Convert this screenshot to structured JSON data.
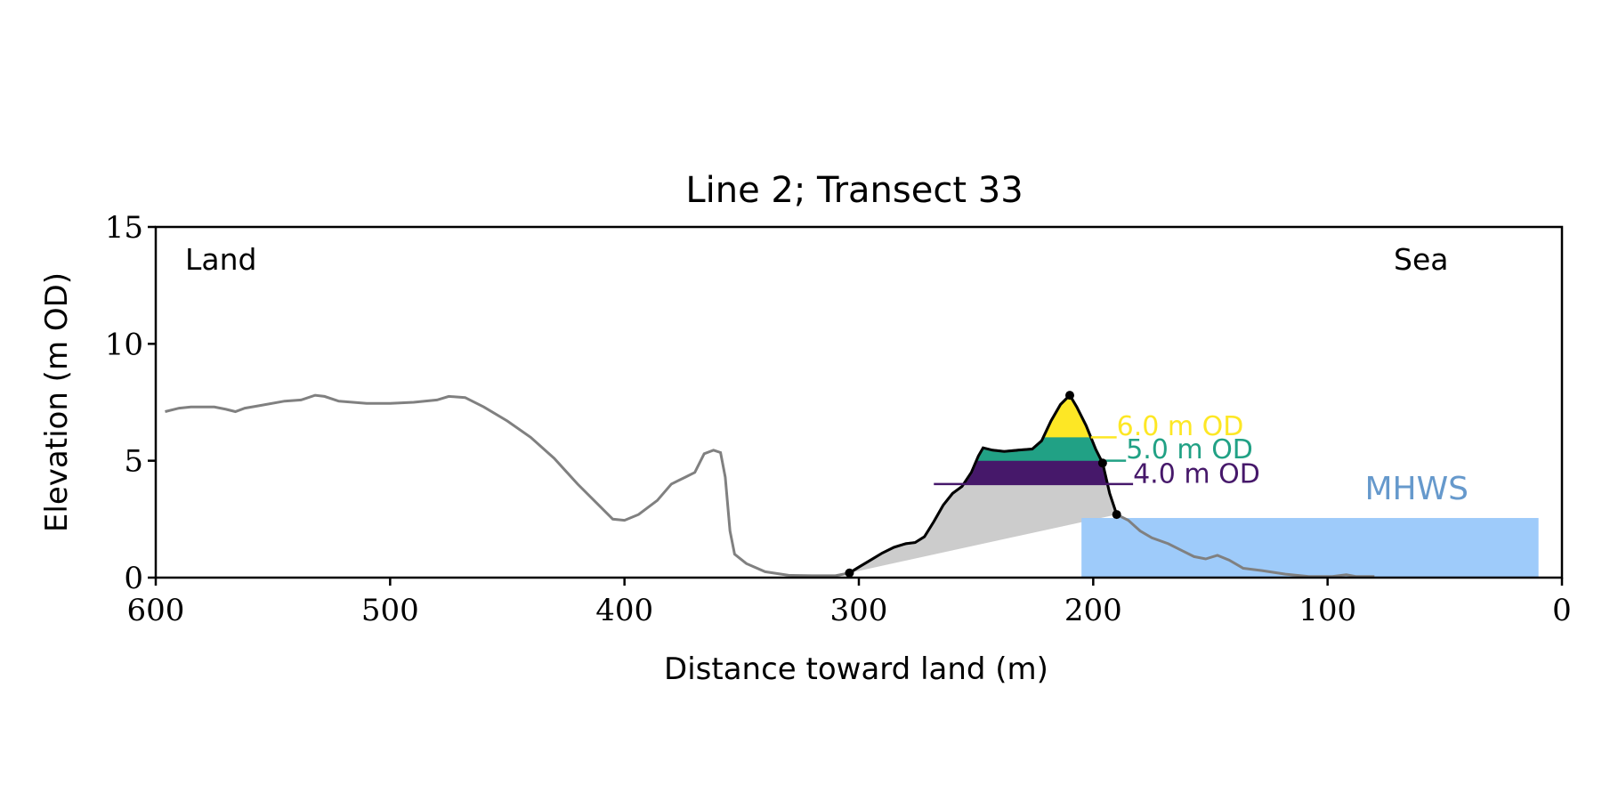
{
  "chart_data": {
    "type": "line",
    "title": "Line 2; Transect 33",
    "xlabel": "Distance toward land (m)",
    "ylabel": "Elevation (m OD)",
    "xlim": [
      600,
      0
    ],
    "ylim": [
      0,
      15
    ],
    "x_ticks": [
      600,
      500,
      400,
      300,
      200,
      100,
      0
    ],
    "y_ticks": [
      0,
      5,
      10,
      15
    ],
    "grid": false,
    "annotations": {
      "land": "Land",
      "sea": "Sea",
      "mhws": "MHWS"
    },
    "mhws": {
      "level": 2.55,
      "x_from": 205,
      "x_to": 10
    },
    "colors": {
      "profile": "#808080",
      "dune": "#000000",
      "fill_base": "#cccccc",
      "band_4": "#46186a",
      "band_5": "#21a185",
      "band_6": "#fde725",
      "mhws": "#9ecbfa",
      "mhws_label": "#6699cc"
    },
    "profile": [
      [
        596,
        7.1
      ],
      [
        590,
        7.25
      ],
      [
        585,
        7.3
      ],
      [
        575,
        7.3
      ],
      [
        570,
        7.2
      ],
      [
        566,
        7.1
      ],
      [
        562,
        7.25
      ],
      [
        556,
        7.35
      ],
      [
        545,
        7.55
      ],
      [
        538,
        7.6
      ],
      [
        532,
        7.8
      ],
      [
        528,
        7.75
      ],
      [
        522,
        7.55
      ],
      [
        510,
        7.45
      ],
      [
        500,
        7.45
      ],
      [
        490,
        7.5
      ],
      [
        480,
        7.6
      ],
      [
        475,
        7.75
      ],
      [
        468,
        7.7
      ],
      [
        460,
        7.3
      ],
      [
        450,
        6.7
      ],
      [
        440,
        6.0
      ],
      [
        430,
        5.1
      ],
      [
        420,
        4.0
      ],
      [
        412,
        3.2
      ],
      [
        405,
        2.5
      ],
      [
        400,
        2.45
      ],
      [
        394,
        2.7
      ],
      [
        386,
        3.3
      ],
      [
        380,
        4.0
      ],
      [
        374,
        4.3
      ],
      [
        370,
        4.5
      ],
      [
        366,
        5.3
      ],
      [
        362,
        5.45
      ],
      [
        359,
        5.35
      ],
      [
        357,
        4.3
      ],
      [
        355,
        2.0
      ],
      [
        353,
        1.0
      ],
      [
        348,
        0.6
      ],
      [
        340,
        0.25
      ],
      [
        330,
        0.1
      ],
      [
        320,
        0.08
      ],
      [
        310,
        0.08
      ],
      [
        304,
        0.2
      ],
      [
        300,
        0.45
      ],
      [
        295,
        0.75
      ],
      [
        290,
        1.05
      ],
      [
        285,
        1.3
      ],
      [
        280,
        1.45
      ],
      [
        276,
        1.5
      ],
      [
        272,
        1.75
      ],
      [
        268,
        2.4
      ],
      [
        264,
        3.1
      ],
      [
        260,
        3.6
      ],
      [
        256,
        3.9
      ],
      [
        252,
        4.5
      ],
      [
        249,
        5.2
      ],
      [
        247,
        5.55
      ],
      [
        243,
        5.45
      ],
      [
        238,
        5.4
      ],
      [
        232,
        5.45
      ],
      [
        226,
        5.5
      ],
      [
        222,
        5.85
      ],
      [
        218,
        6.7
      ],
      [
        214,
        7.4
      ],
      [
        210,
        7.8
      ],
      [
        207,
        7.3
      ],
      [
        203,
        6.5
      ],
      [
        199,
        5.5
      ],
      [
        196,
        4.9
      ],
      [
        193,
        3.6
      ],
      [
        190,
        2.7
      ],
      [
        185,
        2.45
      ],
      [
        180,
        2.0
      ],
      [
        175,
        1.7
      ],
      [
        168,
        1.45
      ],
      [
        162,
        1.15
      ],
      [
        157,
        0.9
      ],
      [
        152,
        0.8
      ],
      [
        147,
        0.95
      ],
      [
        142,
        0.75
      ],
      [
        136,
        0.4
      ],
      [
        128,
        0.3
      ],
      [
        118,
        0.15
      ],
      [
        108,
        0.05
      ],
      [
        98,
        0.05
      ],
      [
        92,
        0.12
      ],
      [
        88,
        0.05
      ],
      [
        80,
        0.05
      ]
    ],
    "dune_profile": [
      [
        304,
        0.2
      ],
      [
        300,
        0.45
      ],
      [
        295,
        0.75
      ],
      [
        290,
        1.05
      ],
      [
        285,
        1.3
      ],
      [
        280,
        1.45
      ],
      [
        276,
        1.5
      ],
      [
        272,
        1.75
      ],
      [
        268,
        2.4
      ],
      [
        264,
        3.1
      ],
      [
        260,
        3.6
      ],
      [
        256,
        3.9
      ],
      [
        252,
        4.5
      ],
      [
        249,
        5.2
      ],
      [
        247,
        5.55
      ],
      [
        243,
        5.45
      ],
      [
        238,
        5.4
      ],
      [
        232,
        5.45
      ],
      [
        226,
        5.5
      ],
      [
        222,
        5.85
      ],
      [
        218,
        6.7
      ],
      [
        214,
        7.4
      ],
      [
        210,
        7.8
      ],
      [
        207,
        7.3
      ],
      [
        203,
        6.5
      ],
      [
        199,
        5.5
      ],
      [
        196,
        4.9
      ],
      [
        193,
        3.6
      ],
      [
        190,
        2.7
      ]
    ],
    "dune_points": [
      [
        304,
        0.2
      ],
      [
        210,
        7.8
      ],
      [
        196,
        4.9
      ],
      [
        190,
        2.7
      ]
    ],
    "levels": [
      {
        "label": "4.0 m OD",
        "value": 4.0,
        "color_key": "band_4",
        "label_x": 183,
        "label_y": 4.05,
        "line_to_x": 183
      },
      {
        "label": "5.0 m OD",
        "value": 5.0,
        "color_key": "band_5",
        "label_x": 186,
        "label_y": 5.1,
        "line_to_x": 186
      },
      {
        "label": "6.0 m OD",
        "value": 6.0,
        "color_key": "band_6",
        "label_x": 190,
        "label_y": 6.1,
        "line_to_x": 190
      }
    ]
  }
}
